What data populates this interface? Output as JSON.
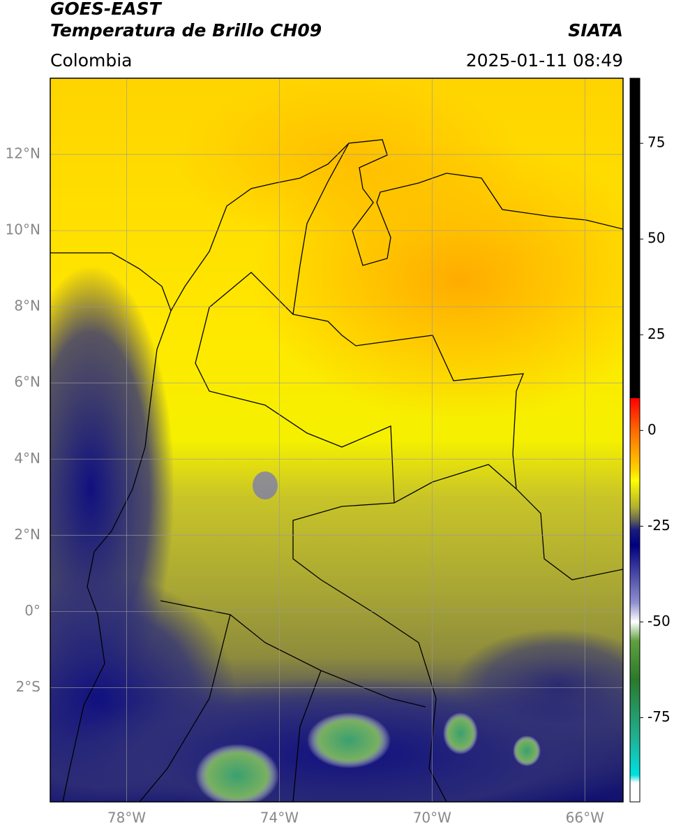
{
  "header": {
    "satellite": "GOES-EAST",
    "product": "Temperatura de Brillo CH09",
    "source": "SIATA",
    "region": "Colombia",
    "timestamp": "2025-01-11 08:49"
  },
  "map": {
    "xlim": [
      -80,
      -65
    ],
    "ylim": [
      -5,
      14
    ],
    "grid": true,
    "grid_color": "#9a9a9a",
    "xticks": [
      {
        "value": -78,
        "label": "78°W"
      },
      {
        "value": -74,
        "label": "74°W"
      },
      {
        "value": -70,
        "label": "70°W"
      },
      {
        "value": -66,
        "label": "66°W"
      }
    ],
    "yticks": [
      {
        "value": 12,
        "label": "12°N"
      },
      {
        "value": 10,
        "label": "10°N"
      },
      {
        "value": 8,
        "label": "8°N"
      },
      {
        "value": 6,
        "label": "6°N"
      },
      {
        "value": 4,
        "label": "4°N"
      },
      {
        "value": 2,
        "label": "2°N"
      },
      {
        "value": 0,
        "label": "0°"
      },
      {
        "value": -2,
        "label": "2°S"
      }
    ]
  },
  "colorbar": {
    "clim": [
      -97,
      92
    ],
    "ticks": [
      75,
      50,
      25,
      0,
      -25,
      -50,
      -75
    ],
    "colormap": [
      {
        "value": 92,
        "color": "#000000"
      },
      {
        "value": 8.5,
        "color": "#000000"
      },
      {
        "value": 8.4,
        "color": "#ff0000"
      },
      {
        "value": 0,
        "color": "#ff6a00"
      },
      {
        "value": -10,
        "color": "#ffd000"
      },
      {
        "value": -13,
        "color": "#ffff00"
      },
      {
        "value": -20,
        "color": "#b0b030"
      },
      {
        "value": -23,
        "color": "#6f6f50"
      },
      {
        "value": -26,
        "color": "#1a1a80"
      },
      {
        "value": -30,
        "color": "#000080"
      },
      {
        "value": -45,
        "color": "#9090d0"
      },
      {
        "value": -50,
        "color": "#ffffff"
      },
      {
        "value": -55,
        "color": "#60a040"
      },
      {
        "value": -65,
        "color": "#2a7a2a"
      },
      {
        "value": -80,
        "color": "#20b090"
      },
      {
        "value": -90,
        "color": "#00e0e0"
      },
      {
        "value": -92,
        "color": "#ffffff"
      },
      {
        "value": -97,
        "color": "#ffffff"
      }
    ]
  }
}
